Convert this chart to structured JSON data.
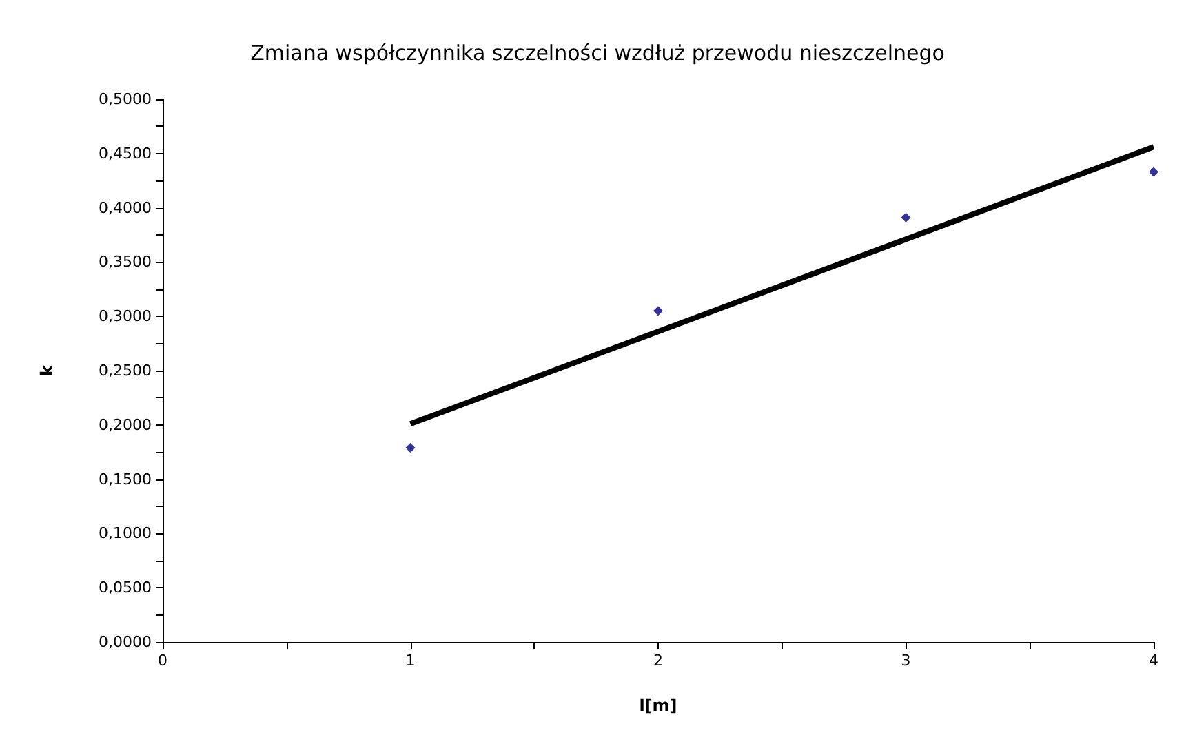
{
  "chart_data": {
    "type": "scatter",
    "title": "Zmiana współczynnika szczelności wzdłuż przewodu nieszczelnego",
    "xlabel": "l[m]",
    "ylabel": "k",
    "xlim": [
      0,
      4
    ],
    "xticks": [
      0,
      {
        "value": 0.5,
        "label": null
      },
      1,
      {
        "value": 1.5,
        "label": null
      },
      2,
      {
        "value": 2.5,
        "label": null
      },
      3,
      {
        "value": 3.5,
        "label": null
      },
      4
    ],
    "ylim": [
      0,
      0.5
    ],
    "yticks": [
      {
        "value": 0,
        "label": "0,0000"
      },
      {
        "value": 0.025,
        "label": null
      },
      {
        "value": 0.05,
        "label": "0,0500"
      },
      {
        "value": 0.075,
        "label": null
      },
      {
        "value": 0.1,
        "label": "0,1000"
      },
      {
        "value": 0.125,
        "label": null
      },
      {
        "value": 0.15,
        "label": "0,1500"
      },
      {
        "value": 0.175,
        "label": null
      },
      {
        "value": 0.2,
        "label": "0,2000"
      },
      {
        "value": 0.225,
        "label": null
      },
      {
        "value": 0.25,
        "label": "0,2500"
      },
      {
        "value": 0.275,
        "label": null
      },
      {
        "value": 0.3,
        "label": "0,3000"
      },
      {
        "value": 0.325,
        "label": null
      },
      {
        "value": 0.35,
        "label": "0,3500"
      },
      {
        "value": 0.375,
        "label": null
      },
      {
        "value": 0.4,
        "label": "0,4000"
      },
      {
        "value": 0.425,
        "label": null
      },
      {
        "value": 0.45,
        "label": "0,4500"
      },
      {
        "value": 0.475,
        "label": null
      },
      {
        "value": 0.5,
        "label": "0,5000"
      }
    ],
    "grid": false,
    "marker": "diamond",
    "series": [
      {
        "color": "#000080",
        "x": [
          1,
          2,
          3,
          4
        ],
        "values": [
          0.179,
          0.305,
          0.391,
          0.433
        ]
      },
      {
        "type": "line",
        "color": "#000000",
        "marker": "none",
        "line_style": "solid",
        "x": [
          1,
          4
        ],
        "values": [
          0.201,
          0.456
        ]
      }
    ]
  }
}
